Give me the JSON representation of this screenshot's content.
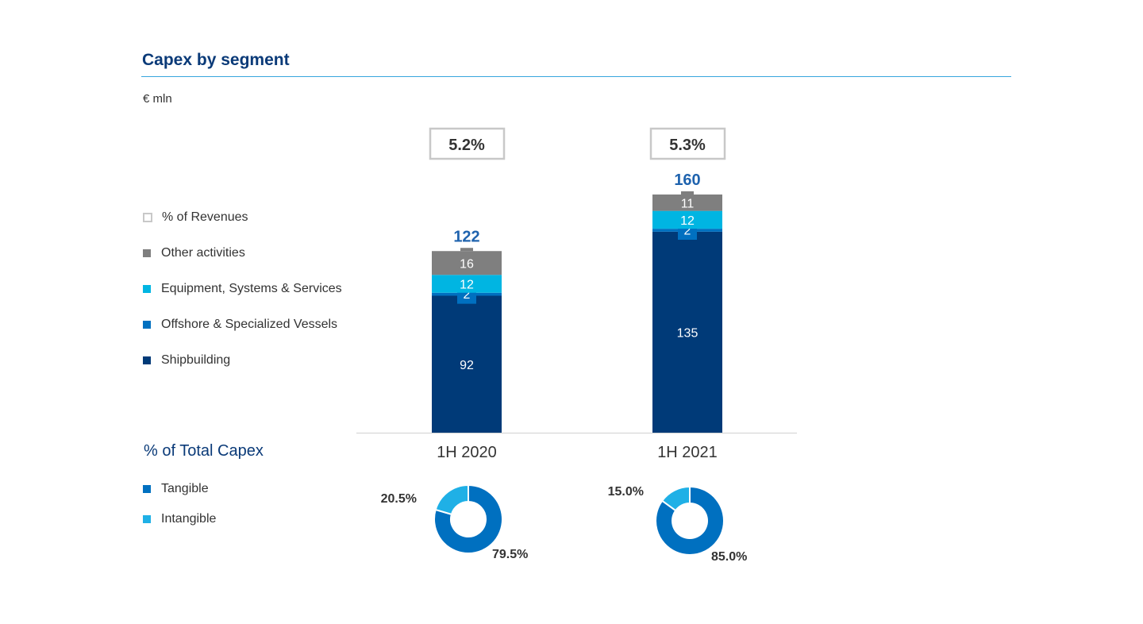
{
  "header": {
    "title": "Capex by segment",
    "unit": "€ mln"
  },
  "legend": [
    {
      "label": "% of Revenues",
      "swatch": "outline",
      "color": "#c8c8c8"
    },
    {
      "label": "Other activities",
      "color": "#7f7f7f"
    },
    {
      "label": "Equipment, Systems & Services",
      "color": "#00b5e2"
    },
    {
      "label": "Offshore & Specialized Vessels",
      "color": "#0070c0"
    },
    {
      "label": "Shipbuilding",
      "color": "#003a78"
    }
  ],
  "pct_total": {
    "title": "% of Total Capex",
    "legend": [
      {
        "label": "Tangible",
        "color": "#0070c0"
      },
      {
        "label": "Intangible",
        "color": "#1fb0e6"
      }
    ]
  },
  "chart_data": [
    {
      "type": "bar",
      "stacked": true,
      "title": "Capex by segment",
      "ylabel": "€ mln",
      "categories": [
        "1H 2020",
        "1H 2021"
      ],
      "series": [
        {
          "name": "Shipbuilding",
          "values": [
            92,
            135
          ],
          "color": "#003a78"
        },
        {
          "name": "Offshore & Specialized Vessels",
          "values": [
            2,
            2
          ],
          "color": "#0070c0"
        },
        {
          "name": "Equipment, Systems & Services",
          "values": [
            12,
            12
          ],
          "color": "#00b5e2"
        },
        {
          "name": "Other activities",
          "values": [
            16,
            11
          ],
          "color": "#7f7f7f"
        }
      ],
      "totals": [
        "122",
        "160"
      ],
      "pct_of_revenues": [
        "5.2%",
        "5.3%"
      ],
      "ylim": [
        0,
        160
      ]
    },
    {
      "type": "pie",
      "title": "% of Total Capex",
      "donut": true,
      "charts": [
        {
          "category": "1H 2020",
          "slices": [
            {
              "name": "Tangible",
              "value": 79.5,
              "label": "79.5%"
            },
            {
              "name": "Intangible",
              "value": 20.5,
              "label": "20.5%"
            }
          ]
        },
        {
          "category": "1H 2021",
          "slices": [
            {
              "name": "Tangible",
              "value": 85.0,
              "label": "85.0%"
            },
            {
              "name": "Intangible",
              "value": 15.0,
              "label": "15.0%"
            }
          ]
        }
      ],
      "colors": {
        "Tangible": "#0070c0",
        "Intangible": "#1fb0e6"
      }
    }
  ]
}
